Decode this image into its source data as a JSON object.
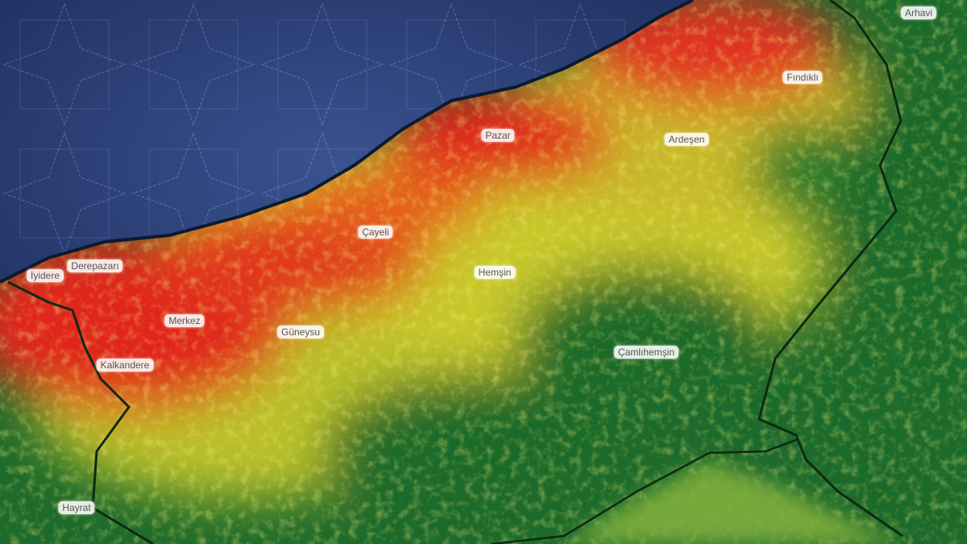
{
  "map": {
    "colors": {
      "sea": "#1e2f62",
      "high": "#e0281e",
      "medium": "#d8d02a",
      "low": "#1d6a2c",
      "outside_region": "#7fae3c",
      "border": "#0d2a14"
    },
    "places": [
      {
        "id": "arhavi",
        "name": "Arhavi"
      },
      {
        "id": "findikli",
        "name": "Fındıklı"
      },
      {
        "id": "pazar",
        "name": "Pazar"
      },
      {
        "id": "ardesen",
        "name": "Ardeşen"
      },
      {
        "id": "cayeli",
        "name": "Çayeli"
      },
      {
        "id": "hemsin",
        "name": "Hemşin"
      },
      {
        "id": "derepazari",
        "name": "Derepazarı"
      },
      {
        "id": "iyidere",
        "name": "İyidere"
      },
      {
        "id": "merkez",
        "name": "Merkez"
      },
      {
        "id": "guneysu",
        "name": "Güneysu"
      },
      {
        "id": "kalkandere",
        "name": "Kalkandere"
      },
      {
        "id": "camlihemsin",
        "name": "Çamlıhemşin"
      },
      {
        "id": "hayrat",
        "name": "Hayrat"
      }
    ]
  }
}
